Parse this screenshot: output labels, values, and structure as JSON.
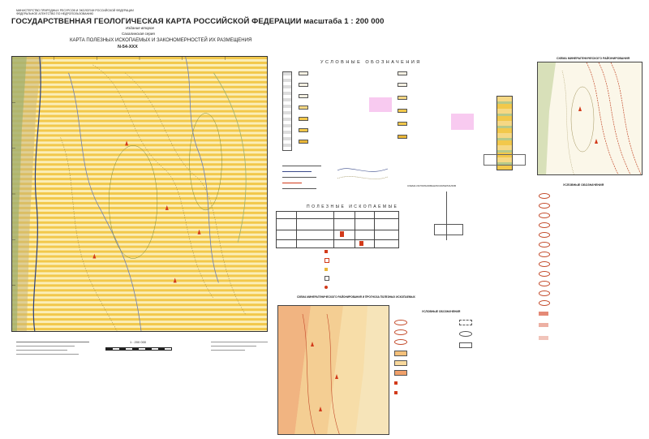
{
  "header": {
    "ministry_line1": "МИНИСТЕРСТВО ПРИРОДНЫХ РЕСУРСОВ И ЭКОЛОГИИ РОССИЙСКОЙ ФЕДЕРАЦИИ",
    "ministry_line2": "ФЕДЕРАЛЬНОЕ АГЕНТСТВО ПО НЕДРОПОЛЬЗОВАНИЮ",
    "title": "ГОСУДАРСТВЕННАЯ ГЕОЛОГИЧЕСКАЯ КАРТА РОССИЙСКОЙ ФЕДЕРАЦИИ масштаба 1 : 200 000",
    "edition": "Издание второе",
    "series": "Сахалинская серия",
    "map_title": "КАРТА ПОЛЕЗНЫХ ИСКОПАЕМЫХ И ЗАКОНОМЕРНОСТЕЙ ИХ РАЗМЕЩЕНИЯ",
    "sheet": "N-54-XXX"
  },
  "main_map": {
    "scale_label": "1 : 200 000",
    "colors": {
      "stripe_yellow": "#f2c84b",
      "stripe_light": "#fbeeb7",
      "green_band": "#b6c98a",
      "fault": "#3a4a8a"
    }
  },
  "legend": {
    "title": "УСЛОВНЫЕ ОБОЗНАЧЕНИЯ",
    "minerals_title": "ПОЛЕЗНЫЕ ИСКОПАЕМЫЕ"
  },
  "panels": {
    "right_top_title": "СХЕМА МИНЕРАГЕНИЧЕСКОГО РАЙОНИРОВАНИЯ",
    "right_legend_title": "УСЛОВНЫЕ ОБОЗНАЧЕНИЯ",
    "bottom_title": "СХЕМА МИНЕРАГЕНИЧЕСКОГО РАЙОНИРОВАНИЯ И ПРОГНОЗА ПОЛЕЗНЫХ ИСКОПАЕМЫХ",
    "bottom_legend_title": "УСЛОВНЫЕ ОБОЗНАЧЕНИЯ",
    "schema_label": "СХЕМА ИСПОЛЬЗОВАНИЯ МАТЕРИАЛОВ"
  }
}
